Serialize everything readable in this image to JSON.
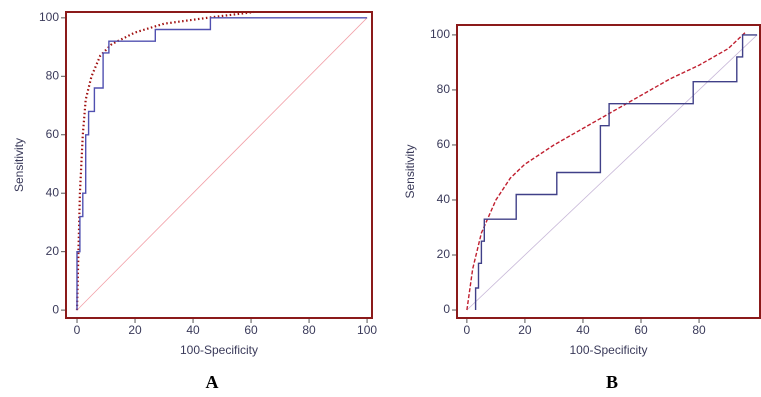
{
  "chart_data": [
    {
      "type": "line",
      "panel_label": "A",
      "x_label": "100-Specificity",
      "y_label": "Sensitivity",
      "frame_color": "#8b1a1a",
      "xlim": [
        -3.8,
        101.7
      ],
      "ylim": [
        -2.7,
        102
      ],
      "xticks": [
        0,
        20,
        40,
        60,
        80,
        100
      ],
      "yticks": [
        0,
        20,
        40,
        60,
        80,
        100
      ],
      "series": [
        {
          "color": "#f2a0a8",
          "style": "solid",
          "width": 0.8,
          "x": [
            0,
            100
          ],
          "values": [
            0,
            100
          ]
        },
        {
          "color": "#a01010",
          "style": "dotted",
          "width": 2.2,
          "x": [
            0,
            1,
            2,
            3,
            5,
            8,
            12,
            20,
            30,
            45,
            61
          ],
          "values": [
            0,
            40,
            60,
            72,
            80,
            87,
            91,
            95,
            98,
            100,
            102
          ]
        },
        {
          "color": "#5050b0",
          "style": "solid",
          "width": 1.4,
          "x": [
            0,
            0,
            1,
            1,
            2,
            2,
            3,
            3,
            4,
            4,
            6,
            6,
            9,
            9,
            11,
            11,
            27,
            27,
            46,
            46,
            100
          ],
          "values": [
            0,
            20,
            20,
            32,
            32,
            40,
            40,
            60,
            60,
            68,
            68,
            76,
            76,
            88,
            88,
            92,
            92,
            96,
            96,
            100,
            100
          ]
        }
      ]
    },
    {
      "type": "line",
      "panel_label": "B",
      "x_label": "100-Specificity",
      "y_label": "Sensitivity",
      "frame_color": "#8b1a1a",
      "xlim": [
        -3.4,
        101
      ],
      "ylim": [
        -2.9,
        103.6
      ],
      "xticks": [
        0,
        20,
        40,
        60,
        80
      ],
      "yticks": [
        0,
        20,
        40,
        60,
        80,
        100
      ],
      "series": [
        {
          "color": "#c8b8d8",
          "style": "solid",
          "width": 0.8,
          "x": [
            0,
            100
          ],
          "values": [
            0,
            100
          ]
        },
        {
          "color": "#c02030",
          "style": "dashed",
          "width": 1.4,
          "x": [
            0,
            2,
            5,
            10,
            15,
            20,
            30,
            40,
            50,
            60,
            70,
            80,
            90,
            96
          ],
          "values": [
            0,
            15,
            28,
            40,
            48,
            53,
            60,
            66,
            72,
            78,
            84,
            89,
            95,
            101
          ]
        },
        {
          "color": "#404088",
          "style": "solid",
          "width": 1.4,
          "x": [
            3,
            3,
            4,
            4,
            5,
            5,
            6,
            6,
            17,
            17,
            31,
            31,
            46,
            46,
            49,
            49,
            78,
            78,
            93,
            93,
            95,
            95,
            100
          ],
          "values": [
            0,
            8,
            8,
            17,
            17,
            25,
            25,
            33,
            33,
            42,
            42,
            50,
            50,
            67,
            67,
            75,
            75,
            83,
            83,
            92,
            92,
            100,
            100
          ]
        }
      ]
    }
  ]
}
